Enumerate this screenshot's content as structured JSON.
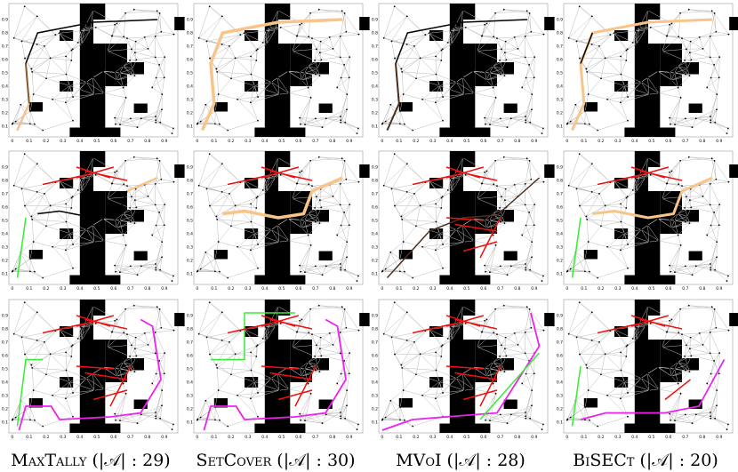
{
  "x_ticks": [
    "0",
    "0.1",
    "0.2",
    "0.3",
    "0.4",
    "0.5",
    "0.6",
    "0.7",
    "0.8",
    "0.9"
  ],
  "y_ticks": [
    "0.1",
    "0.2",
    "0.3",
    "0.4",
    "0.5",
    "0.6",
    "0.7",
    "0.8",
    "0.9"
  ],
  "captions": [
    "MaxTally (|𝒜| : 29)",
    "SetCover (|𝒜| : 30)",
    "MVoI (|𝒜| : 28)",
    "BiSECt (|𝒜| : 20)"
  ]
}
